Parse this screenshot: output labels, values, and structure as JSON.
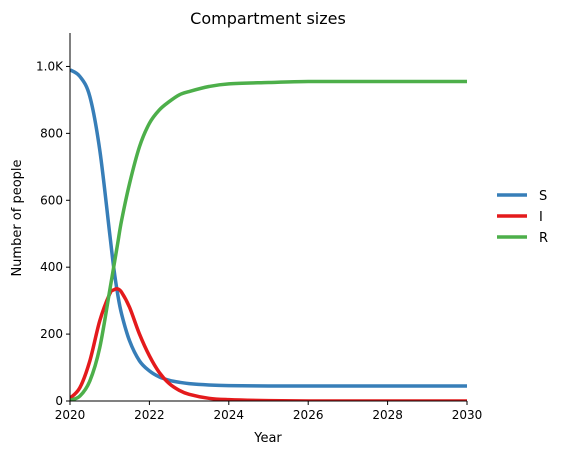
{
  "chart_data": {
    "type": "line",
    "title": "Compartment sizes",
    "xlabel": "Year",
    "ylabel": "Number of people",
    "xlim": [
      2020,
      2030
    ],
    "ylim": [
      0,
      1100
    ],
    "xticks": [
      {
        "value": 2020,
        "label": "2020"
      },
      {
        "value": 2022,
        "label": "2022"
      },
      {
        "value": 2024,
        "label": "2024"
      },
      {
        "value": 2026,
        "label": "2026"
      },
      {
        "value": 2028,
        "label": "2028"
      },
      {
        "value": 2030,
        "label": "2030"
      }
    ],
    "yticks": [
      {
        "value": 0,
        "label": "0"
      },
      {
        "value": 200,
        "label": "200"
      },
      {
        "value": 400,
        "label": "400"
      },
      {
        "value": 600,
        "label": "600"
      },
      {
        "value": 800,
        "label": "800"
      },
      {
        "value": 1000,
        "label": "1.0K"
      }
    ],
    "grid": false,
    "legend": "right",
    "series": [
      {
        "name": "S",
        "color": "#377eb8",
        "x": [
          2020,
          2020.25,
          2020.5,
          2020.75,
          2021,
          2021.1,
          2021.2,
          2021.3,
          2021.5,
          2021.75,
          2022,
          2022.25,
          2022.5,
          2022.75,
          2023,
          2023.5,
          2024,
          2025,
          2026,
          2027,
          2028,
          2029,
          2030
        ],
        "values": [
          990,
          970,
          910,
          750,
          500,
          400,
          320,
          260,
          180,
          120,
          90,
          72,
          62,
          56,
          52,
          48,
          46,
          45,
          45,
          45,
          45,
          45,
          45
        ]
      },
      {
        "name": "I",
        "color": "#e41a1c",
        "x": [
          2020,
          2020.25,
          2020.5,
          2020.75,
          2021,
          2021.1,
          2021.2,
          2021.3,
          2021.5,
          2021.75,
          2022,
          2022.25,
          2022.5,
          2022.75,
          2023,
          2023.5,
          2024,
          2025,
          2026,
          2027,
          2028,
          2029,
          2030
        ],
        "values": [
          8,
          40,
          120,
          240,
          320,
          332,
          335,
          325,
          280,
          200,
          135,
          85,
          52,
          32,
          20,
          8,
          4,
          1,
          0,
          0,
          0,
          0,
          0
        ]
      },
      {
        "name": "R",
        "color": "#4daf4a",
        "x": [
          2020,
          2020.25,
          2020.5,
          2020.75,
          2021,
          2021.1,
          2021.2,
          2021.3,
          2021.5,
          2021.75,
          2022,
          2022.25,
          2022.5,
          2022.75,
          2023,
          2023.5,
          2024,
          2025,
          2026,
          2027,
          2028,
          2029,
          2030
        ],
        "values": [
          2,
          15,
          60,
          160,
          330,
          400,
          470,
          540,
          650,
          760,
          830,
          870,
          895,
          915,
          925,
          940,
          948,
          952,
          955,
          955,
          955,
          955,
          955
        ]
      }
    ]
  }
}
